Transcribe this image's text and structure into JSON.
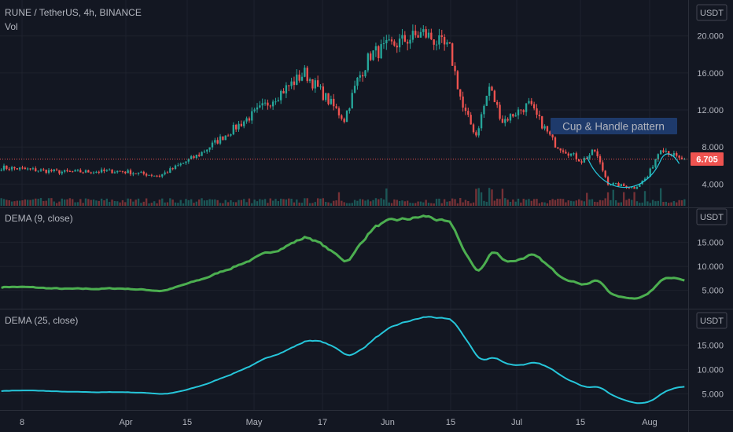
{
  "header": {
    "symbol": "RUNE / TetherUS, 4h, BINANCE",
    "volume_label": "Vol",
    "currency": "USDT"
  },
  "colors": {
    "background": "#131722",
    "up": "#26a69a",
    "down": "#ef5350",
    "dema9": "#4caf50",
    "dema25": "#26c6da",
    "annotation_text": "#2962ff",
    "annotation_bg": "#1e3a6b",
    "price_line": "#ef5350"
  },
  "annotation": {
    "label": "Cup & Handle pattern"
  },
  "last_price_label": "6.705",
  "chart_data": [
    {
      "type": "candlestick",
      "title": "RUNE / TetherUS, 4h, BINANCE",
      "y_ticks": [
        "20.000",
        "16.000",
        "12.000",
        "8.000",
        "4.000"
      ],
      "ylim": [
        2.0,
        21.5
      ],
      "last_price": 6.705,
      "x_ticks": [
        "8",
        "Apr",
        "15",
        "May",
        "17",
        "Jun",
        "15",
        "Jul",
        "15",
        "Aug"
      ],
      "anchor_x": [
        0,
        24,
        45,
        60,
        75,
        100,
        115,
        130,
        135,
        140,
        150,
        160,
        170,
        175,
        180,
        185,
        190,
        200,
        210,
        220,
        225,
        230,
        240,
        245,
        250,
        257
      ],
      "anchor_close": [
        5.8,
        5.3,
        5.4,
        4.9,
        7.2,
        12.5,
        16.0,
        11.0,
        15.2,
        18.0,
        19.2,
        20.3,
        18.5,
        12.2,
        9.3,
        14.5,
        10.8,
        12.6,
        8.3,
        6.5,
        7.6,
        4.1,
        3.6,
        4.8,
        8.0,
        6.7
      ],
      "volume_spikes": [
        128,
        146,
        180,
        181,
        182,
        185,
        186,
        190,
        222,
        230,
        232,
        236,
        240,
        244,
        250
      ]
    },
    {
      "type": "line",
      "title": "DEMA (9, close)",
      "series": [
        {
          "name": "DEMA (9, close)"
        }
      ],
      "y_ticks": [
        "15.000",
        "10.000",
        "5.000"
      ],
      "ylim": [
        2.0,
        21.0
      ]
    },
    {
      "type": "line",
      "title": "DEMA (25, close)",
      "series": [
        {
          "name": "DEMA (25, close)"
        }
      ],
      "y_ticks": [
        "15.000",
        "10.000",
        "5.000"
      ],
      "ylim": [
        2.0,
        21.0
      ]
    }
  ]
}
